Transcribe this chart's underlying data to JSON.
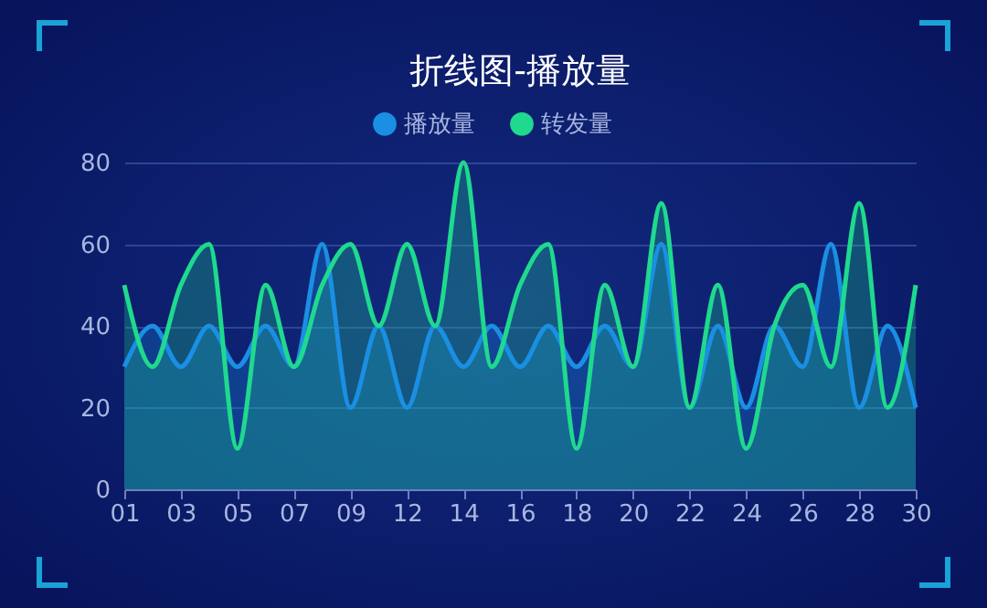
{
  "chart_data": {
    "type": "area",
    "title": "折线图-播放量",
    "categories": [
      "01",
      null,
      "03",
      null,
      "05",
      null,
      "07",
      null,
      "09",
      null,
      "12",
      null,
      "14",
      null,
      "16",
      null,
      "18",
      null,
      "20",
      null,
      "22",
      null,
      "24",
      null,
      "26",
      null,
      "28",
      null,
      "30"
    ],
    "series": [
      {
        "name": "播放量",
        "color": "#1a8fe3",
        "values": [
          30,
          40,
          30,
          40,
          30,
          40,
          30,
          60,
          20,
          40,
          20,
          40,
          30,
          40,
          30,
          40,
          30,
          40,
          30,
          60,
          20,
          40,
          20,
          40,
          30,
          60,
          20,
          40,
          20
        ]
      },
      {
        "name": "转发量",
        "color": "#1fd98e",
        "values": [
          50,
          30,
          50,
          60,
          10,
          50,
          30,
          50,
          60,
          40,
          60,
          40,
          80,
          30,
          50,
          60,
          10,
          50,
          30,
          70,
          20,
          50,
          10,
          40,
          50,
          30,
          70,
          20,
          50
        ]
      }
    ],
    "ylim": [
      0,
      80
    ],
    "yticks": [
      0,
      20,
      40,
      60,
      80
    ],
    "grid": "y",
    "legend": "top",
    "marker": "none",
    "line_style": "solid"
  }
}
